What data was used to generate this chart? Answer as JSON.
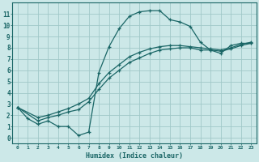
{
  "xlabel": "Humidex (Indice chaleur)",
  "bg_color": "#cce8e8",
  "grid_color": "#a0c8c8",
  "line_color": "#1a6666",
  "xlim": [
    -0.5,
    23.5
  ],
  "ylim": [
    -0.5,
    12.0
  ],
  "xticks": [
    0,
    1,
    2,
    3,
    4,
    5,
    6,
    7,
    8,
    9,
    10,
    11,
    12,
    13,
    14,
    15,
    16,
    17,
    18,
    19,
    20,
    21,
    22,
    23
  ],
  "yticks": [
    0,
    1,
    2,
    3,
    4,
    5,
    6,
    7,
    8,
    9,
    10,
    11
  ],
  "line1_x": [
    0,
    1,
    2,
    3,
    4,
    5,
    6,
    7,
    8,
    9,
    10,
    11,
    12,
    13,
    14,
    15,
    16,
    17,
    18,
    19,
    20,
    21,
    22,
    23
  ],
  "line1_y": [
    2.7,
    1.7,
    1.2,
    1.5,
    1.0,
    1.0,
    0.2,
    0.5,
    5.8,
    8.1,
    9.7,
    10.8,
    11.2,
    11.3,
    11.3,
    10.5,
    10.3,
    9.9,
    8.5,
    7.8,
    7.5,
    8.2,
    8.4,
    8.4
  ],
  "line2_x": [
    0,
    2,
    3,
    4,
    5,
    6,
    7,
    8,
    9,
    10,
    11,
    12,
    13,
    14,
    15,
    16,
    17,
    18,
    19,
    20,
    21,
    22,
    23
  ],
  "line2_y": [
    2.7,
    1.5,
    1.8,
    2.0,
    2.3,
    2.5,
    3.2,
    4.3,
    5.3,
    6.0,
    6.7,
    7.1,
    7.5,
    7.8,
    7.9,
    8.0,
    8.0,
    7.8,
    7.8,
    7.7,
    7.9,
    8.2,
    8.4
  ],
  "line3_x": [
    0,
    2,
    3,
    4,
    5,
    6,
    7,
    8,
    9,
    10,
    11,
    12,
    13,
    14,
    15,
    16,
    17,
    18,
    19,
    20,
    21,
    22,
    23
  ],
  "line3_y": [
    2.7,
    1.8,
    2.0,
    2.3,
    2.6,
    3.0,
    3.5,
    4.8,
    5.8,
    6.5,
    7.2,
    7.6,
    7.9,
    8.1,
    8.2,
    8.2,
    8.1,
    8.0,
    7.9,
    7.8,
    8.0,
    8.3,
    8.5
  ]
}
